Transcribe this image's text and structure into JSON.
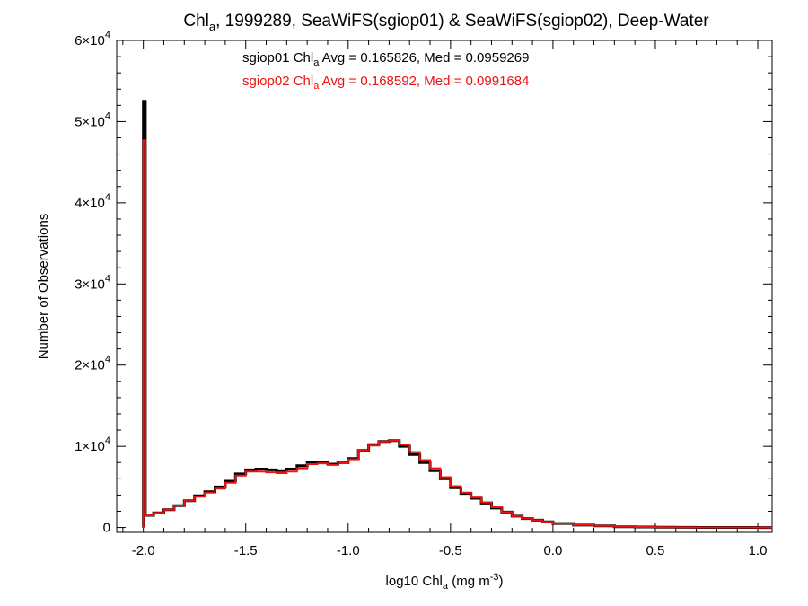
{
  "chart_data": {
    "type": "line",
    "step": true,
    "title_parts": {
      "main": "Chl",
      "sub": "a",
      "rest": ", 1999289, SeaWiFS(sgiop01) & SeaWiFS(sgiop02), Deep-Water"
    },
    "xlabel_parts": {
      "main": "log10 Chl",
      "sub": "a",
      "unit": " (mg m",
      "sup": "-3",
      "close": ")"
    },
    "ylabel": "Number of Observations",
    "xlim": [
      -2.13,
      1.07
    ],
    "ylim": [
      -600,
      60000
    ],
    "xticks": [
      {
        "v": -2.0,
        "label": "-2.0"
      },
      {
        "v": -1.5,
        "label": "-1.5"
      },
      {
        "v": -1.0,
        "label": "-1.0"
      },
      {
        "v": -0.5,
        "label": "-0.5"
      },
      {
        "v": 0.0,
        "label": "0.0"
      },
      {
        "v": 0.5,
        "label": "0.5"
      },
      {
        "v": 1.0,
        "label": "1.0"
      }
    ],
    "yticks": [
      {
        "v": 0,
        "mant": "0",
        "exp": ""
      },
      {
        "v": 10000,
        "mant": "1×10",
        "exp": "4"
      },
      {
        "v": 20000,
        "mant": "2×10",
        "exp": "4"
      },
      {
        "v": 30000,
        "mant": "3×10",
        "exp": "4"
      },
      {
        "v": 40000,
        "mant": "4×10",
        "exp": "4"
      },
      {
        "v": 50000,
        "mant": "5×10",
        "exp": "4"
      },
      {
        "v": 60000,
        "mant": "6×10",
        "exp": "4"
      }
    ],
    "series": [
      {
        "name": "sgiop01",
        "color": "#000000",
        "legend": {
          "pre": "sgiop01 Chl",
          "sub": "a",
          "post": " Avg = 0.165826, Med = 0.0959269"
        },
        "x": [
          -2.0,
          -1.99,
          -1.95,
          -1.9,
          -1.85,
          -1.8,
          -1.75,
          -1.7,
          -1.65,
          -1.6,
          -1.55,
          -1.5,
          -1.45,
          -1.4,
          -1.35,
          -1.3,
          -1.25,
          -1.2,
          -1.15,
          -1.1,
          -1.05,
          -1.0,
          -0.95,
          -0.9,
          -0.85,
          -0.8,
          -0.75,
          -0.7,
          -0.65,
          -0.6,
          -0.55,
          -0.5,
          -0.45,
          -0.4,
          -0.35,
          -0.3,
          -0.25,
          -0.2,
          -0.15,
          -0.1,
          -0.05,
          0.0,
          0.1,
          0.2,
          0.3,
          0.4,
          0.5,
          0.6,
          0.7,
          0.8,
          1.0,
          1.05
        ],
        "y": [
          52500,
          1500,
          1800,
          2200,
          2700,
          3300,
          3900,
          4400,
          5000,
          5700,
          6600,
          7100,
          7200,
          7100,
          7000,
          7200,
          7600,
          8000,
          8000,
          7800,
          8000,
          8500,
          9500,
          10200,
          10600,
          10700,
          10000,
          9000,
          8000,
          7000,
          6000,
          4900,
          4200,
          3600,
          3000,
          2400,
          1900,
          1400,
          1100,
          900,
          700,
          500,
          300,
          200,
          100,
          60,
          30,
          20,
          10,
          5,
          0,
          0
        ]
      },
      {
        "name": "sgiop02",
        "color": "#ee1111",
        "legend": {
          "pre": "sgiop02 Chl",
          "sub": "a",
          "post": " Avg = 0.168592, Med = 0.0991684"
        },
        "x": [
          -2.0,
          -1.99,
          -1.95,
          -1.9,
          -1.85,
          -1.8,
          -1.75,
          -1.7,
          -1.65,
          -1.6,
          -1.55,
          -1.5,
          -1.45,
          -1.4,
          -1.35,
          -1.3,
          -1.25,
          -1.2,
          -1.15,
          -1.1,
          -1.05,
          -1.0,
          -0.95,
          -0.9,
          -0.85,
          -0.8,
          -0.75,
          -0.7,
          -0.65,
          -0.6,
          -0.55,
          -0.5,
          -0.45,
          -0.4,
          -0.35,
          -0.3,
          -0.25,
          -0.2,
          -0.15,
          -0.1,
          -0.05,
          0.0,
          0.1,
          0.2,
          0.3,
          0.4,
          0.5,
          0.6,
          0.7,
          0.8,
          1.0,
          1.05
        ],
        "y": [
          47700,
          1500,
          1800,
          2200,
          2700,
          3300,
          3800,
          4300,
          4800,
          5500,
          6400,
          6900,
          6900,
          6800,
          6700,
          6900,
          7300,
          7800,
          7900,
          7700,
          8000,
          8400,
          9500,
          10100,
          10600,
          10700,
          10200,
          9300,
          8300,
          7300,
          6200,
          5100,
          4300,
          3700,
          3100,
          2500,
          1900,
          1400,
          1100,
          900,
          700,
          500,
          300,
          200,
          100,
          60,
          30,
          20,
          10,
          5,
          0,
          0
        ]
      }
    ]
  }
}
